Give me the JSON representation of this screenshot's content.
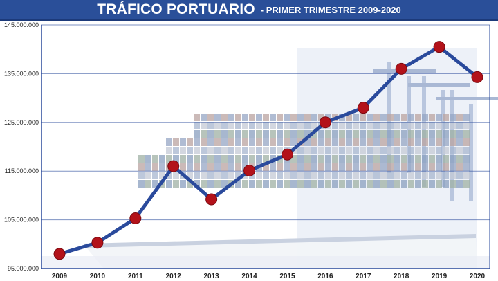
{
  "title": {
    "main": "TRÁFICO PORTUARIO",
    "sub": "- PRIMER TRIMESTRE 2009-2020"
  },
  "colors": {
    "title_bg": "#2a4f99",
    "line": "#2a4a9c",
    "marker": "#b3121a",
    "grid": "#2a4a9c",
    "background_tint": "#dfe6f3",
    "ship_hull": "#f2f4f8"
  },
  "chart_data": {
    "type": "line",
    "title": "TRÁFICO PORTUARIO - PRIMER TRIMESTRE 2009-2020",
    "xlabel": "",
    "ylabel": "",
    "categories": [
      "2009",
      "2010",
      "2011",
      "2012",
      "2013",
      "2014",
      "2015",
      "2016",
      "2017",
      "2018",
      "2019",
      "2020"
    ],
    "values": [
      98000000,
      100300000,
      105300000,
      116000000,
      109200000,
      115100000,
      118400000,
      125000000,
      128000000,
      136000000,
      140500000,
      134300000
    ],
    "ylim": [
      95000000,
      145000000
    ],
    "yticks": [
      95000000,
      105000000,
      115000000,
      125000000,
      135000000,
      145000000
    ],
    "ytick_labels": [
      "95.000.000",
      "105.000.000",
      "115.000.000",
      "125.000.000",
      "135.000.000",
      "145.000.000"
    ],
    "grid": true,
    "legend": "none"
  }
}
